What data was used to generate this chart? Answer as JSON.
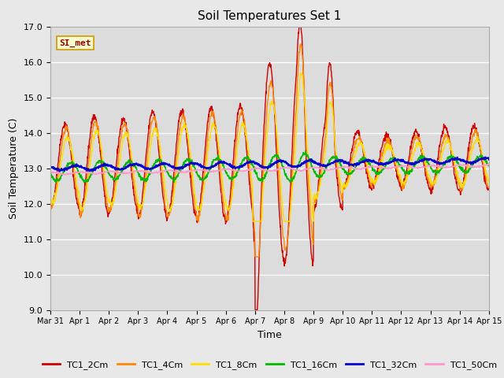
{
  "title": "Soil Temperatures Set 1",
  "xlabel": "Time",
  "ylabel": "Soil Temperature (C)",
  "ylim": [
    9.0,
    17.0
  ],
  "yticks": [
    9.0,
    10.0,
    11.0,
    12.0,
    13.0,
    14.0,
    15.0,
    16.0,
    17.0
  ],
  "fig_bg_color": "#e8e8e8",
  "plot_bg_color": "#dcdcdc",
  "grid_color": "#ffffff",
  "annotation_text": "SI_met",
  "annotation_color": "#8B0000",
  "annotation_bg": "#ffffcc",
  "annotation_border": "#cc9900",
  "series": {
    "TC1_2Cm": {
      "color": "#cc0000",
      "lw": 1.0
    },
    "TC1_4Cm": {
      "color": "#ff8800",
      "lw": 1.0
    },
    "TC1_8Cm": {
      "color": "#ffdd00",
      "lw": 1.0
    },
    "TC1_16Cm": {
      "color": "#00bb00",
      "lw": 1.2
    },
    "TC1_32Cm": {
      "color": "#0000cc",
      "lw": 1.5
    },
    "TC1_50Cm": {
      "color": "#ff99cc",
      "lw": 1.0
    }
  },
  "xtick_labels": [
    "Mar 31",
    "Apr 1",
    "Apr 2",
    "Apr 3",
    "Apr 4",
    "Apr 5",
    "Apr 6",
    "Apr 7",
    "Apr 8",
    "Apr 9",
    "Apr 10",
    "Apr 11",
    "Apr 12",
    "Apr 13",
    "Apr 14",
    "Apr 15"
  ],
  "days": 15
}
